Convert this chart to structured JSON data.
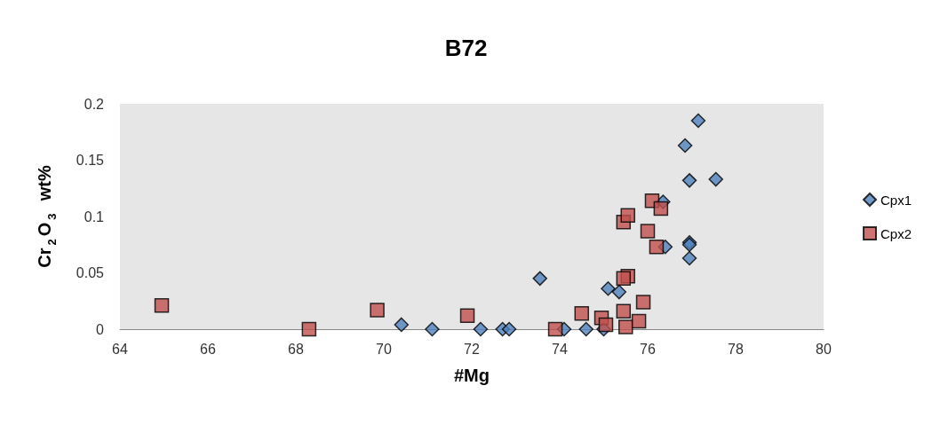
{
  "chart_data": {
    "type": "scatter",
    "title": "B72",
    "xlabel": "#Mg",
    "ylabel": "Cr$_{2}$O$_{3}$  wt%",
    "xlim": [
      64,
      80
    ],
    "xticks": [
      64,
      66,
      68,
      70,
      72,
      74,
      76,
      78,
      80
    ],
    "ylim": [
      0,
      0.2
    ],
    "yticks": [
      0,
      0.05,
      0.1,
      0.15,
      0.2
    ],
    "grid": false,
    "legend": "right",
    "series": [
      {
        "name": "Cpx1",
        "color": "#4f81bd",
        "marker": "diamond",
        "x": [
          70.4,
          71.1,
          72.2,
          72.7,
          72.85,
          73.55,
          74.1,
          74.6,
          75.0,
          75.1,
          75.35,
          75.45,
          76.35,
          76.4,
          76.85,
          76.95,
          76.95,
          76.95,
          76.95,
          77.15,
          77.55
        ],
        "values": [
          0.004,
          0,
          0,
          0,
          0,
          0.045,
          0,
          0,
          0,
          0.036,
          0.033,
          null,
          0.113,
          0.073,
          0.163,
          0.132,
          0.077,
          0.075,
          0.063,
          0.185,
          0.133
        ]
      },
      {
        "name": "Cpx2",
        "color": "#c0504d",
        "marker": "square",
        "x": [
          64.95,
          68.3,
          69.85,
          71.9,
          73.9,
          74.5,
          74.95,
          75.05,
          75.45,
          75.55,
          75.45,
          75.5,
          75.55,
          75.45,
          75.8,
          75.9,
          76.0,
          76.1,
          76.3,
          76.2
        ],
        "values": [
          0.021,
          0,
          0.017,
          0.012,
          0,
          0.014,
          0.01,
          0.004,
          0.095,
          0.101,
          0.016,
          0.002,
          0.047,
          0.045,
          0.007,
          0.024,
          0.087,
          0.114,
          0.107,
          0.073
        ]
      }
    ]
  }
}
